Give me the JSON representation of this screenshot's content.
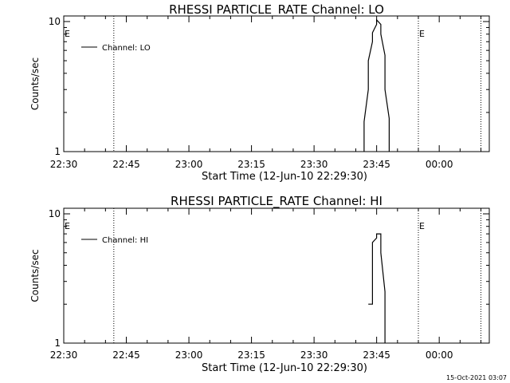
{
  "timestamp": "15-Oct-2021 03:07",
  "chart_data": [
    {
      "type": "line",
      "title": "RHESSI PARTICLE_RATE Channel: LO",
      "xlabel": "Start Time (12-Jun-10 22:29:30)",
      "ylabel": "Counts/sec",
      "y_scale": "log",
      "ylim": [
        1,
        10
      ],
      "y_ticks": [
        "1",
        "10"
      ],
      "xlim": [
        "22:30",
        "00:12"
      ],
      "x_ticks": [
        "22:30",
        "22:45",
        "23:00",
        "23:15",
        "23:30",
        "23:45",
        "00:00"
      ],
      "legend": {
        "position": "top-left",
        "entries": [
          "Channel: LO"
        ]
      },
      "vlines_dotted": [
        "22:42",
        "23:55",
        "00:10"
      ],
      "markers": [
        {
          "label": "E",
          "time": "22:30"
        },
        {
          "label": "E",
          "time": "23:55"
        }
      ],
      "series": [
        {
          "name": "Channel: LO",
          "x": [
            "23:42",
            "23:42",
            "23:43",
            "23:43",
            "23:44",
            "23:44",
            "23:45",
            "23:45",
            "23:46",
            "23:46",
            "23:47",
            "23:47",
            "23:48",
            "23:48"
          ],
          "y": [
            0.9,
            1.7,
            3.0,
            5.0,
            7.0,
            8.2,
            9.5,
            10.3,
            9.5,
            8.0,
            5.5,
            3.0,
            1.8,
            0.9
          ]
        }
      ]
    },
    {
      "type": "line",
      "title": "RHESSI PARTICLE_RATE Channel: HI",
      "xlabel": "Start Time (12-Jun-10 22:29:30)",
      "ylabel": "Counts/sec",
      "y_scale": "log",
      "ylim": [
        1,
        10
      ],
      "y_ticks": [
        "1",
        "10"
      ],
      "xlim": [
        "22:30",
        "00:12"
      ],
      "x_ticks": [
        "22:30",
        "22:45",
        "23:00",
        "23:15",
        "23:30",
        "23:45",
        "00:00"
      ],
      "legend": {
        "position": "top-left",
        "entries": [
          "Channel: HI"
        ]
      },
      "vlines_dotted": [
        "22:42",
        "23:55",
        "00:10"
      ],
      "markers": [
        {
          "label": "E",
          "time": "22:30"
        },
        {
          "label": "E",
          "time": "23:55"
        }
      ],
      "series": [
        {
          "name": "Channel: HI",
          "x": [
            "23:43",
            "23:44",
            "23:44",
            "23:44",
            "23:45",
            "23:45",
            "23:46",
            "23:46",
            "23:47",
            "23:47"
          ],
          "y": [
            2.0,
            2.0,
            4.5,
            6.0,
            6.5,
            7.0,
            7.0,
            5.0,
            2.5,
            0.9
          ]
        }
      ]
    }
  ]
}
